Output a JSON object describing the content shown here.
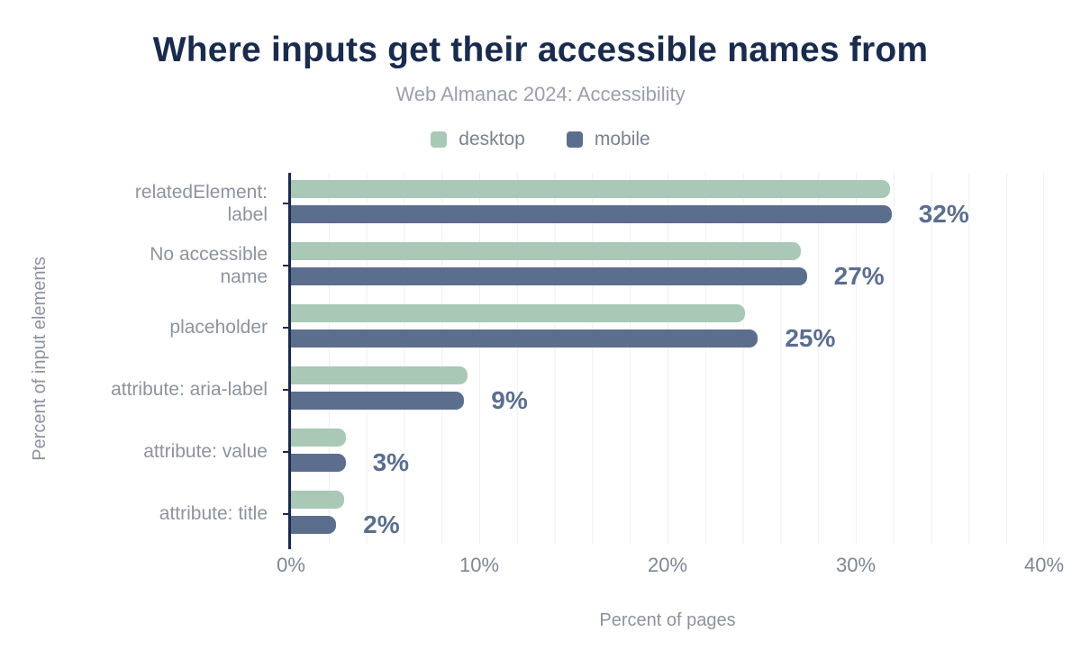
{
  "title": "Where inputs get their accessible names from",
  "subtitle": "Web Almanac 2024: Accessibility",
  "legend": [
    {
      "label": "desktop",
      "color": "#a9c8b6"
    },
    {
      "label": "mobile",
      "color": "#5b6e8e"
    }
  ],
  "colors": {
    "title": "#1a2b4d",
    "subtitle": "#9aa0ab",
    "axis_line": "#1a2b4d",
    "gridline": "#edeff3",
    "category_label": "#8d939e",
    "tick_label": "#7f8692",
    "value_label": "#5b6e8e",
    "desktop_bar": "#a9c8b6",
    "mobile_bar": "#5b6e8e"
  },
  "chart_data": {
    "type": "bar",
    "orientation": "horizontal",
    "title": "Where inputs get their accessible names from",
    "subtitle": "Web Almanac 2024: Accessibility",
    "xlabel": "Percent of pages",
    "ylabel": "Percent of input elements",
    "xlim": [
      0,
      40
    ],
    "xticks": [
      "0%",
      "10%",
      "20%",
      "30%",
      "40%"
    ],
    "grid": "vertical gridlines every 2%, legend top-center",
    "categories": [
      "relatedElement: label",
      "No accessible name",
      "placeholder",
      "attribute: aria-label",
      "attribute: value",
      "attribute: title"
    ],
    "category_display_lines": [
      [
        "relatedElement:",
        "label"
      ],
      [
        "No accessible",
        "name"
      ],
      [
        "placeholder"
      ],
      [
        "attribute: aria-label"
      ],
      [
        "attribute: value"
      ],
      [
        "attribute: title"
      ]
    ],
    "series": [
      {
        "name": "desktop",
        "values": [
          31.8,
          27.1,
          24.1,
          9.4,
          2.9,
          2.8
        ]
      },
      {
        "name": "mobile",
        "values": [
          31.9,
          27.4,
          24.8,
          9.2,
          2.9,
          2.4
        ]
      }
    ],
    "value_labels": [
      "32%",
      "27%",
      "25%",
      "9%",
      "3%",
      "2%"
    ]
  }
}
